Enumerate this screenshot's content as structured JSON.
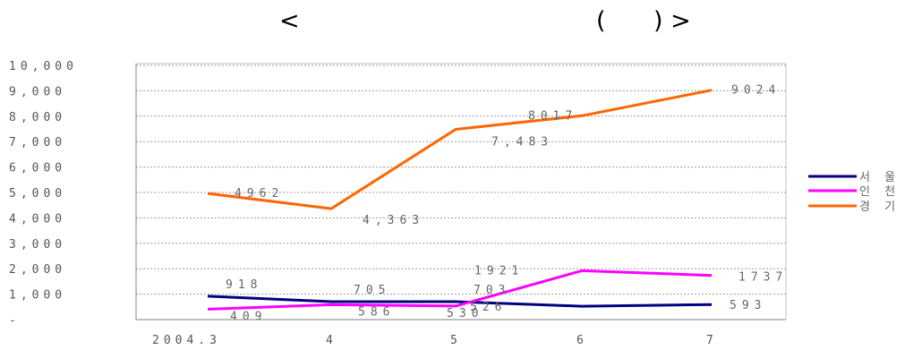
{
  "title": {
    "open_bracket": "<",
    "left_paren": "(",
    "right_paren_bracket": ") >"
  },
  "colors": {
    "seoul": "#000080",
    "incheon": "#ff00ff",
    "gyeonggi": "#ff6600",
    "grid": "#9a9a9a",
    "axis": "#808080"
  },
  "chart_data": {
    "type": "line",
    "categories": [
      "2004.3",
      "4",
      "5",
      "6",
      "7"
    ],
    "yticks": [
      "10,000",
      "9,000",
      "8,000",
      "7,000",
      "6,000",
      "5,000",
      "4,000",
      "3,000",
      "2,000",
      "1,000",
      "-"
    ],
    "ylim": [
      0,
      10000
    ],
    "grid": true,
    "legend_position": "right",
    "series": [
      {
        "name": "서 울",
        "color": "#000080",
        "values": [
          918,
          705,
          703,
          526,
          593
        ],
        "labels": [
          "918",
          "705",
          "703",
          "526",
          "593"
        ]
      },
      {
        "name": "인 천",
        "color": "#ff00ff",
        "values": [
          409,
          586,
          530,
          1921,
          1737
        ],
        "labels": [
          "409",
          "586",
          "530",
          "1921",
          "1737"
        ]
      },
      {
        "name": "경 기",
        "color": "#ff6600",
        "values": [
          4962,
          4363,
          7483,
          8017,
          9024
        ],
        "labels": [
          "4962",
          "4,363",
          "7,483",
          "8017",
          "9024"
        ]
      }
    ]
  }
}
